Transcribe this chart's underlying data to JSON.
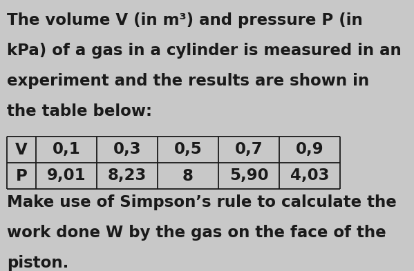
{
  "background_color": "#c8c8c8",
  "text_color": "#1a1a1a",
  "lines_para1": [
    "The volume V (in m³) and pressure P (in",
    "kPa) of a gas in a cylinder is measured in an",
    "experiment and the results are shown in",
    "the table below:"
  ],
  "table_headers": [
    "V",
    "0,1",
    "0,3",
    "0,5",
    "0,7",
    "0,9"
  ],
  "table_row2": [
    "P",
    "9,01",
    "8,23",
    "8",
    "5,90",
    "4,03"
  ],
  "lines_para2": [
    "Make use of Simpson’s rule to calculate the",
    "work done W by the gas on the face of the",
    "piston."
  ],
  "font_size_text": 16.5,
  "font_family": "DejaVu Sans"
}
